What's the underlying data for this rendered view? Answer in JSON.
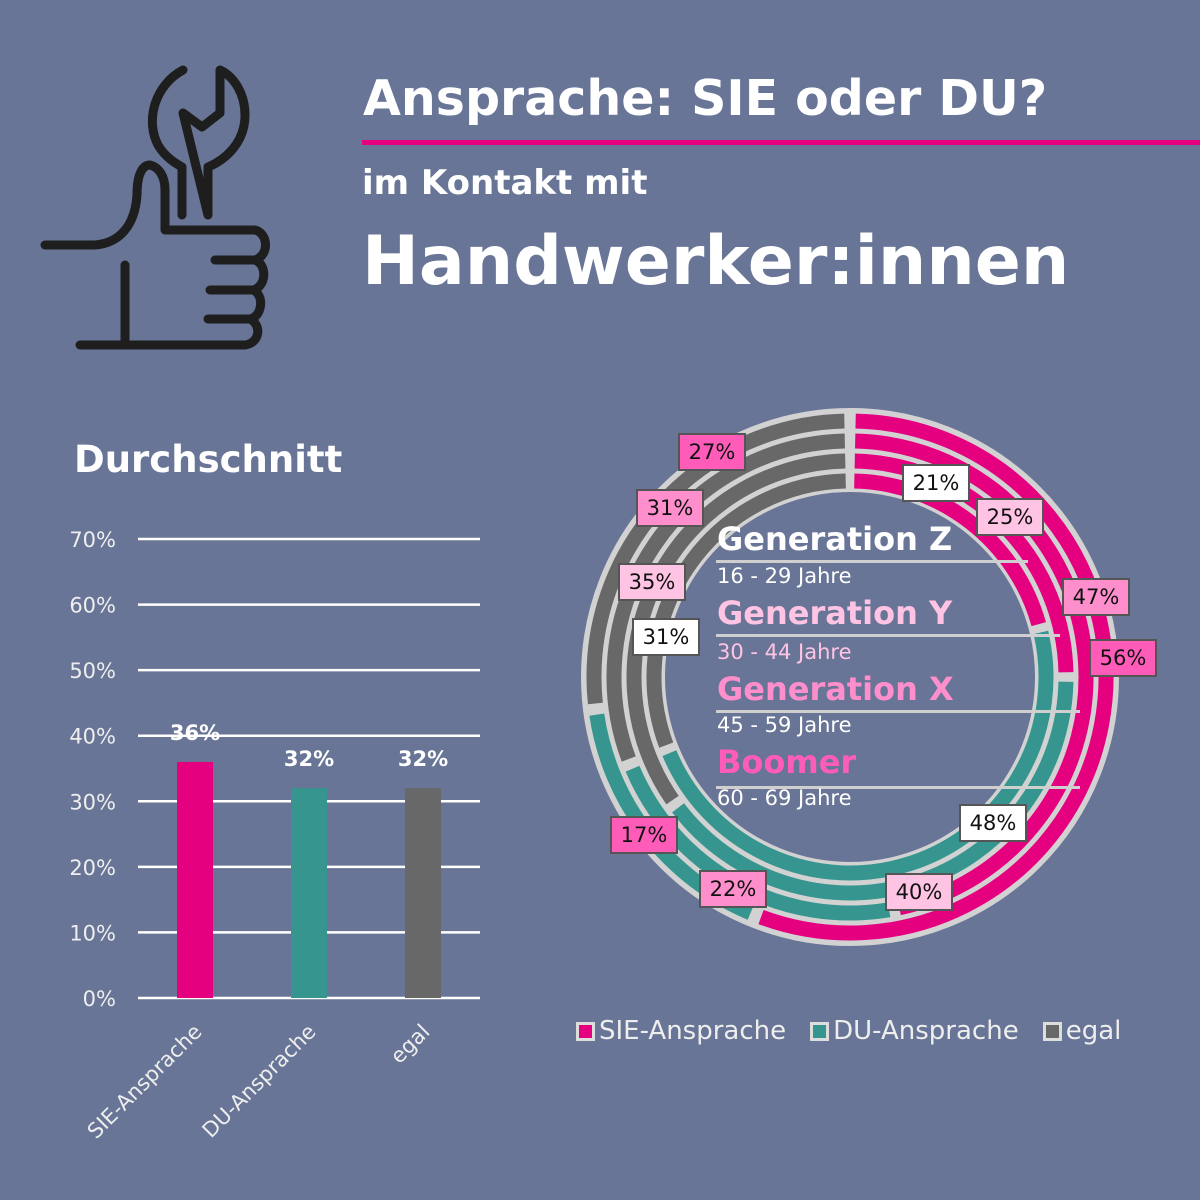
{
  "header": {
    "title": "Ansprache: SIE oder DU?",
    "subtitle": "im Kontakt mit",
    "main_title": "Handwerker:innen",
    "icon": "hand-wrench-icon"
  },
  "colors": {
    "background": "#687596",
    "sie": "#e5007f",
    "du": "#36968f",
    "egal": "#686868",
    "gen_z": "#ffffff",
    "gen_y": "#ffc4e4",
    "gen_x": "#ff8fcc",
    "boomer": "#ff5cba"
  },
  "chart_data": [
    {
      "type": "bar",
      "title": "Durchschnitt",
      "categories": [
        "SIE-Ansprache",
        "DU-Ansprache",
        "egal"
      ],
      "values": [
        36,
        32,
        32
      ],
      "value_labels": [
        "36%",
        "32%",
        "32%"
      ],
      "ylim": [
        0,
        70
      ],
      "yticks": [
        "0%",
        "10%",
        "20%",
        "30%",
        "40%",
        "50%",
        "60%",
        "70%"
      ],
      "grid": true,
      "xlabel": "",
      "ylabel": ""
    },
    {
      "type": "pie",
      "subtype": "multi-ring doughnut",
      "ring_order": "Boomer outermost to Generation Z innermost",
      "categories": [
        "SIE-Ansprache",
        "DU-Ansprache",
        "egal"
      ],
      "series": [
        {
          "name": "Generation Z",
          "age": "16 - 29 Jahre",
          "values": [
            21,
            48,
            31
          ],
          "labels": [
            "21%",
            "48%",
            "31%"
          ]
        },
        {
          "name": "Generation Y",
          "age": "30 - 44 Jahre",
          "values": [
            25,
            40,
            35
          ],
          "labels": [
            "25%",
            "40%",
            "35%"
          ]
        },
        {
          "name": "Generation X",
          "age": "45 - 59 Jahre",
          "values": [
            47,
            22,
            31
          ],
          "labels": [
            "47%",
            "22%",
            "31%"
          ]
        },
        {
          "name": "Boomer",
          "age": "60 - 69 Jahre",
          "values": [
            56,
            17,
            27
          ],
          "labels": [
            "56%",
            "17%",
            "27%"
          ]
        }
      ],
      "legend": [
        "SIE-Ansprache",
        "DU-Ansprache",
        "egal"
      ],
      "legend_position": "bottom"
    }
  ]
}
